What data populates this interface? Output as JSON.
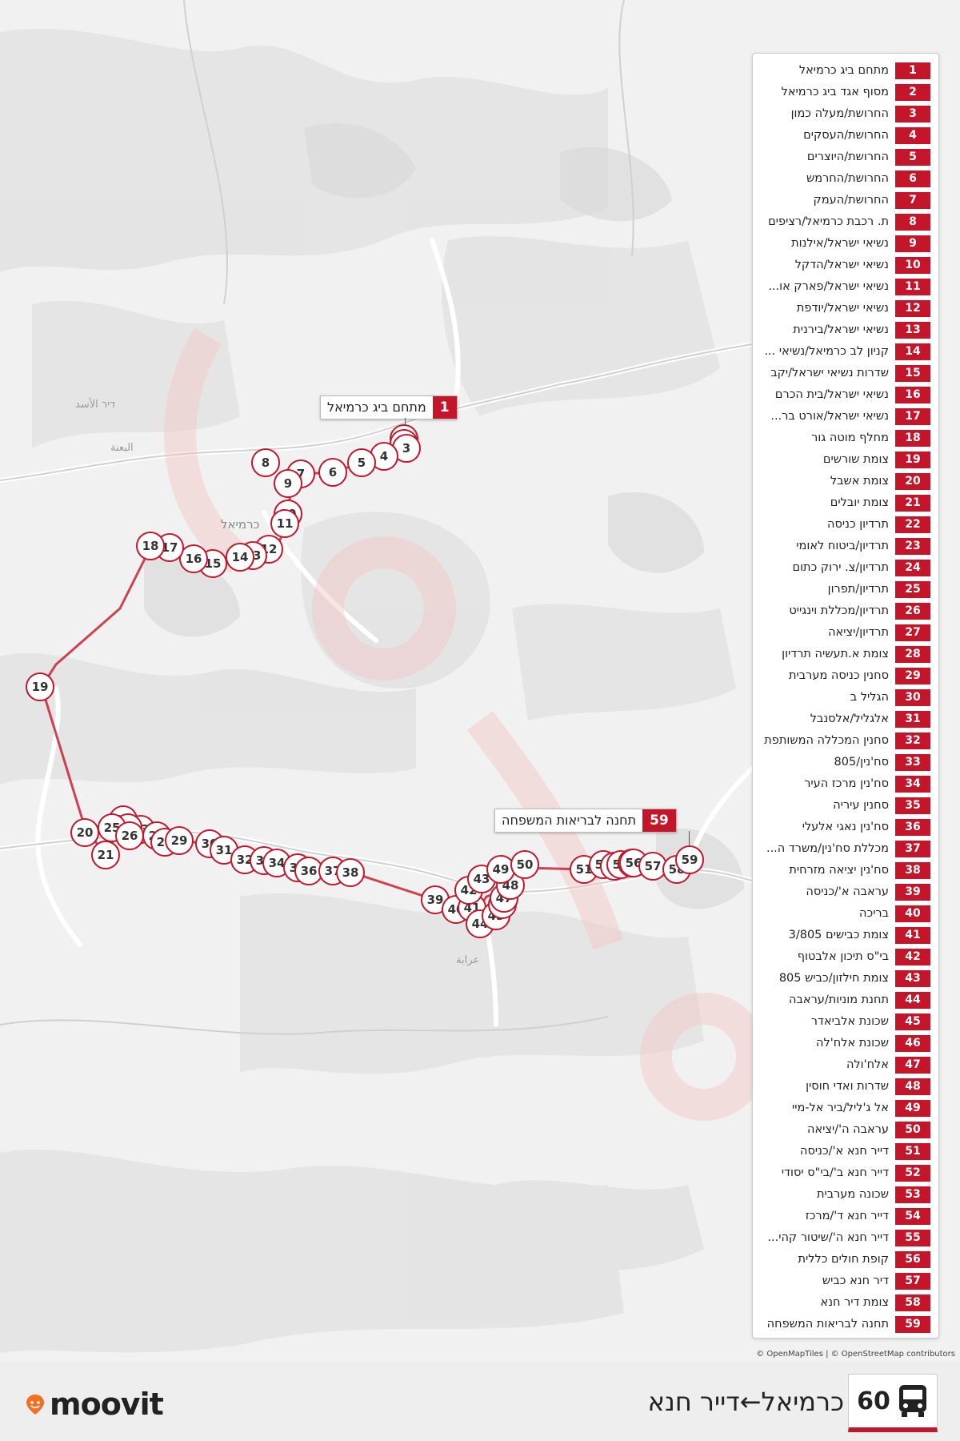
{
  "colors": {
    "accent": "#c4162a"
  },
  "route": {
    "number": "60",
    "title": "כרמיאל←דייר חנא",
    "icon": "bus-icon"
  },
  "brand": {
    "name": "moovit",
    "icon": "moovit-pin-icon"
  },
  "attribution": "© OpenMapTiles | © OpenStreetMap contributors",
  "map": {
    "place_labels": [
      "כרמיאל",
      "דיר الأسد",
      "البعنة",
      "عرابة"
    ],
    "callouts": [
      {
        "number": "1",
        "name": "מתחם ביג כרמיאל"
      },
      {
        "number": "59",
        "name": "תחנה לבריאות המשפחה"
      }
    ],
    "stop_markers": [
      "1",
      "2",
      "3",
      "4",
      "5",
      "6",
      "7",
      "8",
      "9",
      "10",
      "11",
      "12",
      "13",
      "14",
      "15",
      "16",
      "17",
      "18",
      "19",
      "20",
      "21",
      "22",
      "23",
      "24",
      "25",
      "26",
      "27",
      "28",
      "29",
      "30",
      "31",
      "32",
      "33",
      "34",
      "35",
      "36",
      "37",
      "38",
      "39",
      "40",
      "41",
      "42",
      "43",
      "44",
      "45",
      "46",
      "47",
      "48",
      "49",
      "50",
      "51",
      "52",
      "53",
      "54",
      "55",
      "56",
      "57",
      "58",
      "59"
    ]
  },
  "legend": [
    {
      "number": "1",
      "name": "מתחם ביג כרמיאל"
    },
    {
      "number": "2",
      "name": "מסוף אגד ביג כרמיאל"
    },
    {
      "number": "3",
      "name": "החרושת/מעלה כמון"
    },
    {
      "number": "4",
      "name": "החרושת/העסקים"
    },
    {
      "number": "5",
      "name": "החרושת/היוצרים"
    },
    {
      "number": "6",
      "name": "החרושת/החרמש"
    },
    {
      "number": "7",
      "name": "החרושת/העמק"
    },
    {
      "number": "8",
      "name": "ת. רכבת כרמיאל/רציפים"
    },
    {
      "number": "9",
      "name": "נשיאי ישראל/אילנות"
    },
    {
      "number": "10",
      "name": "נשיאי ישראל/הדקל"
    },
    {
      "number": "11",
      "name": "נשיאי ישראל/פארק או..."
    },
    {
      "number": "12",
      "name": "נשיאי ישראל/יודפת"
    },
    {
      "number": "13",
      "name": "נשיאי ישראל/בירנית"
    },
    {
      "number": "14",
      "name": "קניון לב כרמיאל/נשיאי ..."
    },
    {
      "number": "15",
      "name": "שדרות נשיאי ישראל/יקב"
    },
    {
      "number": "16",
      "name": "נשיאי ישראל/בית הכרם"
    },
    {
      "number": "17",
      "name": "נשיאי ישראל/אורט בר..."
    },
    {
      "number": "18",
      "name": "מחלף מוטה גור"
    },
    {
      "number": "19",
      "name": "צומת שורשים"
    },
    {
      "number": "20",
      "name": "צומת אשבל"
    },
    {
      "number": "21",
      "name": "צומת יובלים"
    },
    {
      "number": "22",
      "name": "תרדיון כניסה"
    },
    {
      "number": "23",
      "name": "תרדיון/ביטוח לאומי"
    },
    {
      "number": "24",
      "name": "תרדיון/צ. ירוק כתום"
    },
    {
      "number": "25",
      "name": "תרדיון/תפרון"
    },
    {
      "number": "26",
      "name": "תרדיון/מכללת וינגייט"
    },
    {
      "number": "27",
      "name": "תרדיון/יציאה"
    },
    {
      "number": "28",
      "name": "צומת א.תעשיה תרדיון"
    },
    {
      "number": "29",
      "name": "סחנין כניסה מערבית"
    },
    {
      "number": "30",
      "name": "הגליל ב"
    },
    {
      "number": "31",
      "name": "אלגליל/אלסנבל"
    },
    {
      "number": "32",
      "name": "סחנין המכללה המשותפת"
    },
    {
      "number": "33",
      "name": "סח'נין/805"
    },
    {
      "number": "34",
      "name": "סח'נין מרכז העיר"
    },
    {
      "number": "35",
      "name": "סחנין עיריה"
    },
    {
      "number": "36",
      "name": "סח'נין נאגי אלעלי"
    },
    {
      "number": "37",
      "name": "מכללת סח'נין/משרד ה..."
    },
    {
      "number": "38",
      "name": "סח'נין יציאה מזרחית"
    },
    {
      "number": "39",
      "name": "עראבה א'/כניסה"
    },
    {
      "number": "40",
      "name": "בריכה"
    },
    {
      "number": "41",
      "name": "צומת כבישים 3/805"
    },
    {
      "number": "42",
      "name": "בי\"ס תיכון אלבטוף"
    },
    {
      "number": "43",
      "name": "צומת חילזון/כביש 805"
    },
    {
      "number": "44",
      "name": "תחנת מוניות/עראבה"
    },
    {
      "number": "45",
      "name": "שכונת אלביאדר"
    },
    {
      "number": "46",
      "name": "שכונת אלח'לה"
    },
    {
      "number": "47",
      "name": "אלח'ולה"
    },
    {
      "number": "48",
      "name": "שדרות ואדי חוסין"
    },
    {
      "number": "49",
      "name": "אל ג'ליל/ביר אל-מיי"
    },
    {
      "number": "50",
      "name": "עראבה ה'/יציאה"
    },
    {
      "number": "51",
      "name": "דייר חנא א'/כניסה"
    },
    {
      "number": "52",
      "name": "דייר חנא ב'/בי\"ס יסודי"
    },
    {
      "number": "53",
      "name": "שכונה מערבית"
    },
    {
      "number": "54",
      "name": "דייר חנא ד'/מרכז"
    },
    {
      "number": "55",
      "name": "דייר חנא ה'/שיטור קהי..."
    },
    {
      "number": "56",
      "name": "קופת חולים כללית"
    },
    {
      "number": "57",
      "name": "דיר חנא כביש"
    },
    {
      "number": "58",
      "name": "צומת דיר חנא"
    },
    {
      "number": "59",
      "name": "תחנה לבריאות המשפחה"
    }
  ]
}
